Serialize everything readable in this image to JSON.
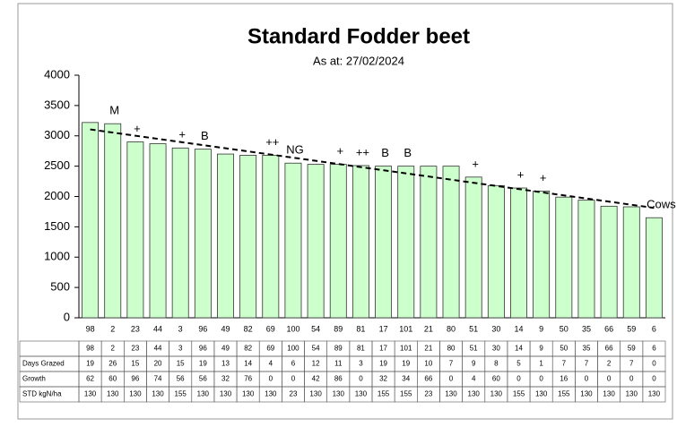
{
  "chart_data": {
    "type": "bar",
    "title": "Standard Fodder beet",
    "subtitle": "As at: 27/02/2024",
    "categories": [
      "98",
      "2",
      "23",
      "44",
      "3",
      "96",
      "49",
      "82",
      "69",
      "100",
      "54",
      "89",
      "81",
      "17",
      "101",
      "21",
      "80",
      "51",
      "30",
      "14",
      "9",
      "50",
      "35",
      "66",
      "59",
      "6"
    ],
    "values": [
      3220,
      3200,
      2900,
      2870,
      2800,
      2780,
      2700,
      2680,
      2680,
      2550,
      2530,
      2530,
      2510,
      2500,
      2500,
      2500,
      2500,
      2320,
      2180,
      2140,
      2090,
      1990,
      1940,
      1840,
      1830,
      1650
    ],
    "bar_notes": [
      null,
      "M",
      "+",
      null,
      "+",
      "B",
      null,
      null,
      "++",
      "NG",
      null,
      "+",
      "++",
      "B",
      "B",
      null,
      null,
      "+",
      null,
      "+",
      "+",
      null,
      null,
      null,
      null,
      "Cows"
    ],
    "color": "#ccffcc",
    "trendline": true,
    "ylim": [
      0,
      4000
    ],
    "yticks": [
      0,
      500,
      1000,
      1500,
      2000,
      2500,
      3000,
      3500,
      4000
    ],
    "grid": false
  },
  "table": {
    "rows": [
      {
        "label": "Days Grazed",
        "values": [
          19,
          26,
          15,
          20,
          15,
          19,
          13,
          14,
          4,
          6,
          12,
          11,
          3,
          19,
          19,
          10,
          7,
          9,
          8,
          5,
          1,
          7,
          7,
          2,
          7,
          0
        ]
      },
      {
        "label": "Growth",
        "values": [
          62,
          60,
          96,
          74,
          56,
          56,
          32,
          76,
          0,
          0,
          42,
          86,
          0,
          32,
          34,
          66,
          0,
          4,
          60,
          0,
          0,
          16,
          0,
          0,
          0,
          0
        ]
      },
      {
        "label": "STD kgN/ha",
        "values": [
          130,
          130,
          130,
          130,
          155,
          130,
          130,
          130,
          130,
          23,
          130,
          130,
          130,
          155,
          155,
          23,
          130,
          130,
          130,
          155,
          130,
          155,
          130,
          130,
          130,
          130
        ]
      }
    ]
  }
}
